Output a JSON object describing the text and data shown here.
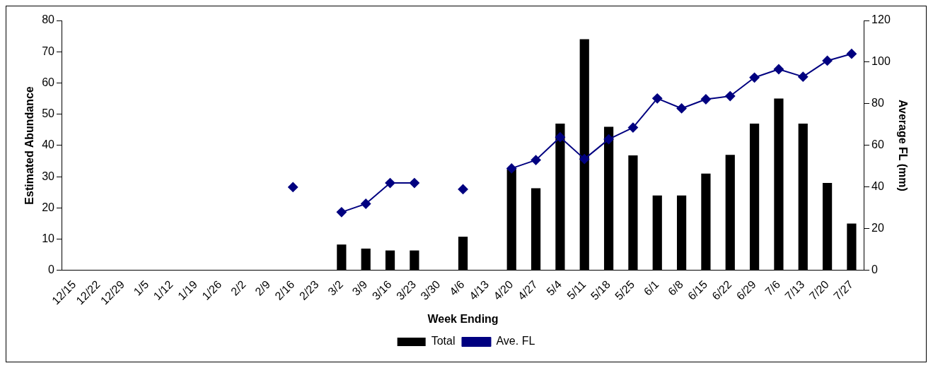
{
  "chart_data": {
    "type": "bar",
    "xlabel": "Week Ending",
    "ylabel": "Estimated Abundance",
    "y2label": "Average FL (mm)",
    "categories": [
      "12/15",
      "12/22",
      "12/29",
      "1/5",
      "1/12",
      "1/19",
      "1/26",
      "2/2",
      "2/9",
      "2/16",
      "2/23",
      "3/2",
      "3/9",
      "3/16",
      "3/23",
      "3/30",
      "4/6",
      "4/13",
      "4/20",
      "4/27",
      "5/4",
      "5/11",
      "5/18",
      "5/25",
      "6/1",
      "6/8",
      "6/15",
      "6/22",
      "6/29",
      "7/6",
      "7/13",
      "7/20",
      "7/27"
    ],
    "series": [
      {
        "name": "Total",
        "color": "#000000",
        "values": [
          null,
          null,
          null,
          null,
          null,
          null,
          null,
          null,
          null,
          null,
          null,
          8.3,
          7,
          6.4,
          6.4,
          null,
          10.8,
          null,
          32.4,
          26.3,
          47,
          74,
          46,
          36.8,
          24,
          24,
          31,
          37,
          47,
          55,
          47,
          28,
          15
        ]
      },
      {
        "name": "Ave. FL",
        "type": "line",
        "axis": "y2",
        "color": "#000080",
        "marker": "diamond",
        "values": [
          null,
          null,
          null,
          null,
          null,
          null,
          null,
          null,
          null,
          40,
          null,
          28,
          32,
          42,
          42,
          null,
          39,
          null,
          49,
          53,
          64,
          53.5,
          63,
          68.6,
          82.6,
          77.8,
          82.2,
          83.7,
          92.6,
          96.6,
          93,
          100.7,
          104
        ]
      }
    ],
    "ylim": [
      0,
      80
    ],
    "yticks": [
      0,
      10,
      20,
      30,
      40,
      50,
      60,
      70,
      80
    ],
    "y2lim": [
      0,
      120
    ],
    "y2ticks": [
      0,
      20,
      40,
      60,
      80,
      100,
      120
    ],
    "grid": false,
    "legend": "bottom"
  }
}
